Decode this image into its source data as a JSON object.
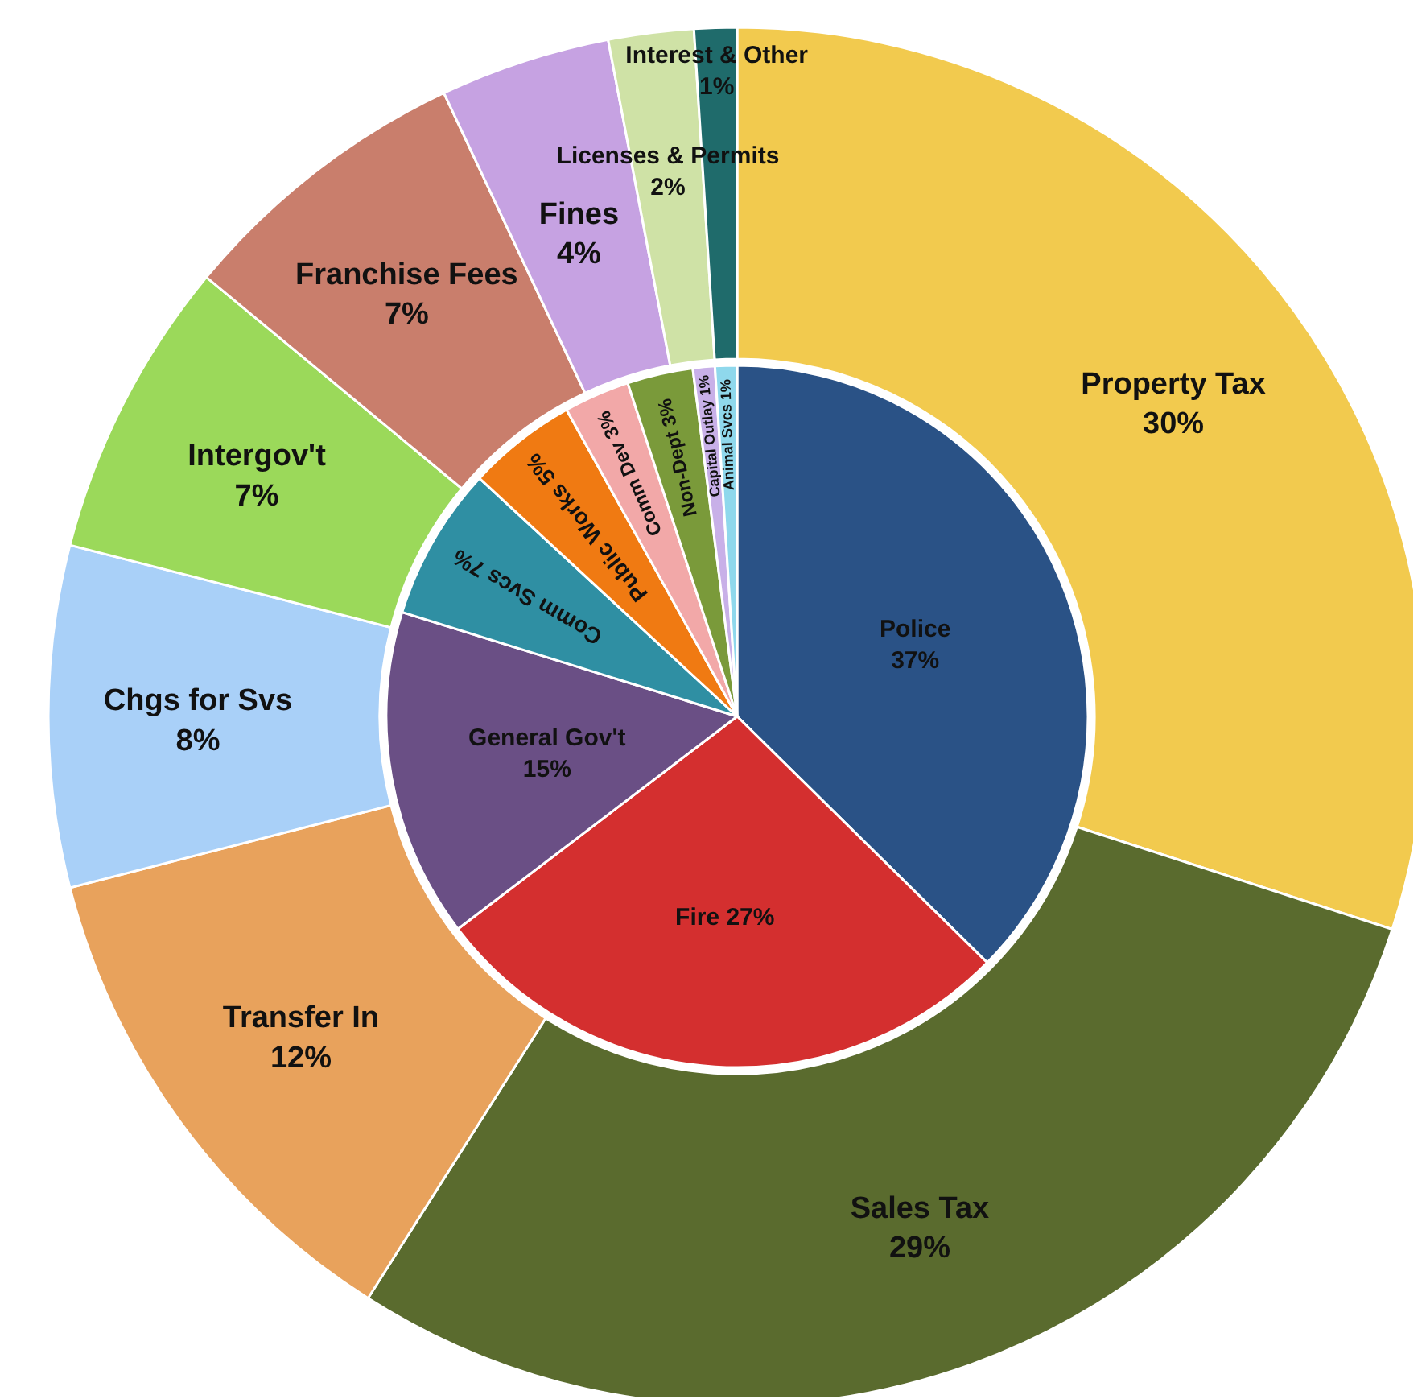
{
  "chart_data": [
    {
      "type": "pie",
      "categories": [
        "Police",
        "Fire",
        "General Gov't",
        "Comm Svcs",
        "Public Works",
        "Comm Dev",
        "Non-Dept",
        "Capital Outlay",
        "Animal Svcs"
      ],
      "values": [
        37,
        27,
        15,
        7,
        5,
        3,
        3,
        1,
        1
      ],
      "value_labels": [
        "37%",
        "27%",
        "15%",
        "7%",
        "5%",
        "3%",
        "3%",
        "1%",
        "1%"
      ],
      "colors": [
        "#2a5286",
        "#d42f2f",
        "#6a4f85",
        "#2f8fa3",
        "#f07a12",
        "#f2a8a8",
        "#7a9a3a",
        "#c8b0e8",
        "#8fd8ec"
      ],
      "legend": false
    },
    {
      "type": "donut",
      "categories": [
        "Property Tax",
        "Sales Tax",
        "Transfer In",
        "Chgs for Svs",
        "Intergov't",
        "Franchise Fees",
        "Fines",
        "Licenses & Permits",
        "Interest & Other"
      ],
      "values": [
        30,
        29,
        12,
        8,
        7,
        7,
        4,
        2,
        1
      ],
      "value_labels": [
        "30%",
        "29%",
        "12%",
        "8%",
        "7%",
        "7%",
        "4%",
        "2%",
        "1%"
      ],
      "colors": [
        "#f2ca4e",
        "#5a6b2e",
        "#e8a25c",
        "#a9d0f8",
        "#9bd95a",
        "#c97e6c",
        "#c6a2e2",
        "#cfe2a6",
        "#1f6b6b"
      ],
      "legend": false
    }
  ]
}
